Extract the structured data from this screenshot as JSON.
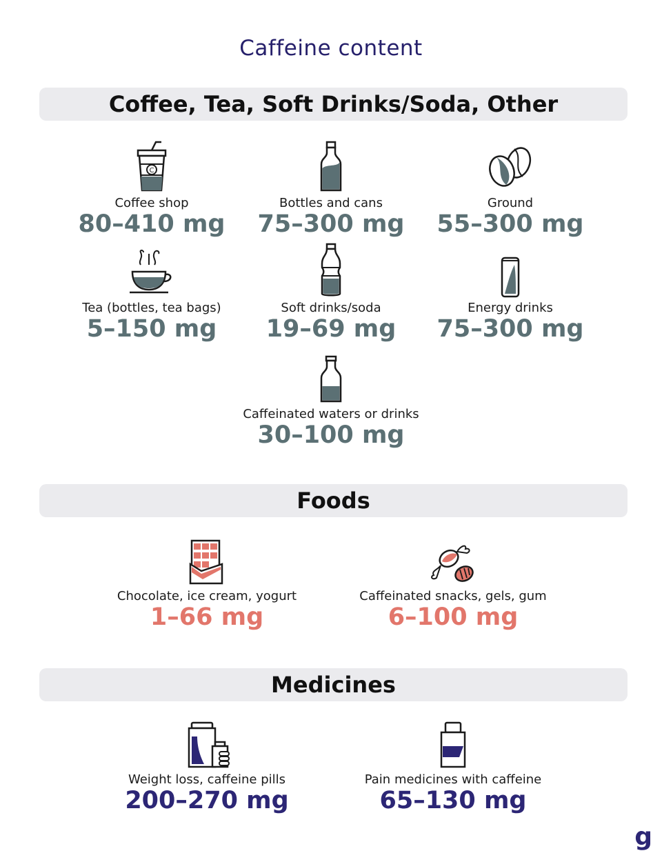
{
  "title": "Caffeine content",
  "colors": {
    "grey_value": "#5b7074",
    "food_value": "#e2766b",
    "medicine_value": "#2c2675",
    "bar_bg": "#ebebee"
  },
  "sections": [
    {
      "heading": "Coffee, Tea, Soft Drinks/Soda, Other",
      "items": [
        {
          "icon": "coffee-cup-icon",
          "label": "Coffee shop",
          "value": "80–410 mg"
        },
        {
          "icon": "bottle-icon",
          "label": "Bottles and cans",
          "value": "75–300 mg"
        },
        {
          "icon": "coffee-beans-icon",
          "label": "Ground",
          "value": "55–300 mg"
        },
        {
          "icon": "tea-cup-icon",
          "label": "Tea (bottles, tea bags)",
          "value": "5–150 mg"
        },
        {
          "icon": "soda-bottle-icon",
          "label": "Soft drinks/soda",
          "value": "19–69 mg"
        },
        {
          "icon": "energy-can-icon",
          "label": "Energy drinks",
          "value": "75–300 mg"
        },
        {
          "icon": "water-bottle-icon",
          "label": "Caffeinated waters or drinks",
          "value": "30–100 mg"
        }
      ]
    },
    {
      "heading": "Foods",
      "items": [
        {
          "icon": "chocolate-bar-icon",
          "label": "Chocolate, ice cream, yogurt",
          "value": "1–66 mg"
        },
        {
          "icon": "candy-icon",
          "label": "Caffeinated snacks, gels, gum",
          "value": "6–100 mg"
        }
      ]
    },
    {
      "heading": "Medicines",
      "items": [
        {
          "icon": "pill-jars-icon",
          "label": "Weight loss, caffeine pills",
          "value": "200–270 mg"
        },
        {
          "icon": "medicine-bottle-icon",
          "label": "Pain medicines with caffeine",
          "value": "65–130 mg"
        }
      ]
    }
  ],
  "logo": "g"
}
